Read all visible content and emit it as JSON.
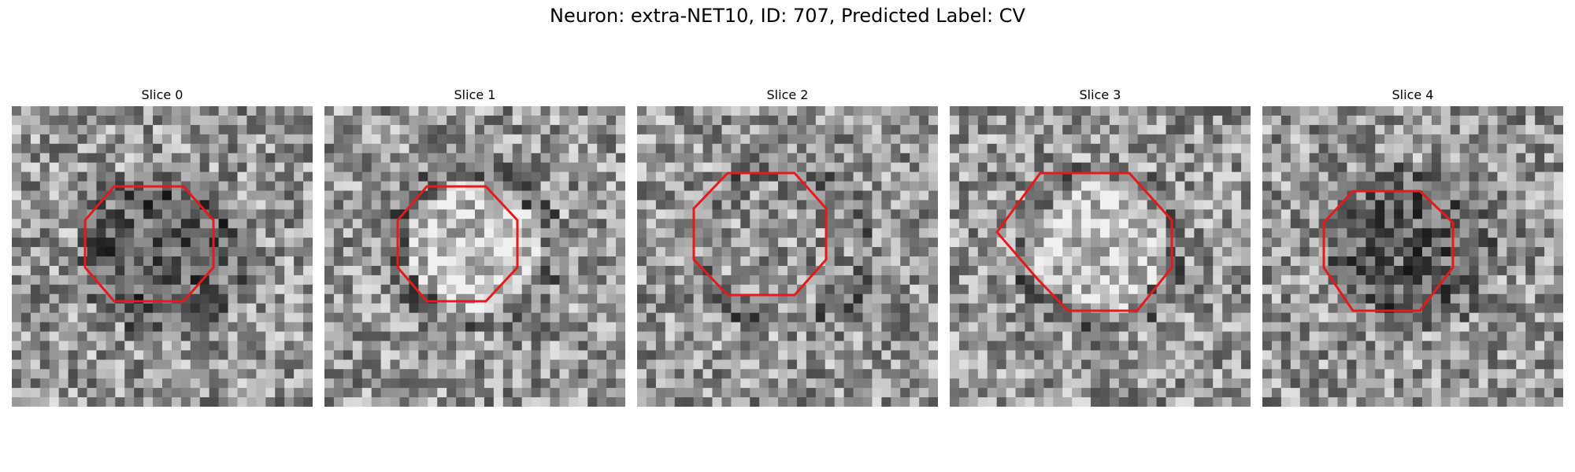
{
  "figure": {
    "title": "Neuron: extra-NET10, ID: 707, Predicted Label: CV"
  },
  "panels": [
    {
      "title": "Slice 0",
      "seed": 17,
      "center": "dark",
      "contour_color": "#e41a1c"
    },
    {
      "title": "Slice 1",
      "seed": 41,
      "center": "bright",
      "contour_color": "#e41a1c"
    },
    {
      "title": "Slice 2",
      "seed": 73,
      "center": "medium",
      "contour_color": "#e41a1c"
    },
    {
      "title": "Slice 3",
      "seed": 97,
      "center": "bright",
      "contour_color": "#e41a1c"
    },
    {
      "title": "Slice 4",
      "seed": 131,
      "center": "dark",
      "contour_color": "#e41a1c"
    }
  ],
  "image_colormap": "grayscale"
}
